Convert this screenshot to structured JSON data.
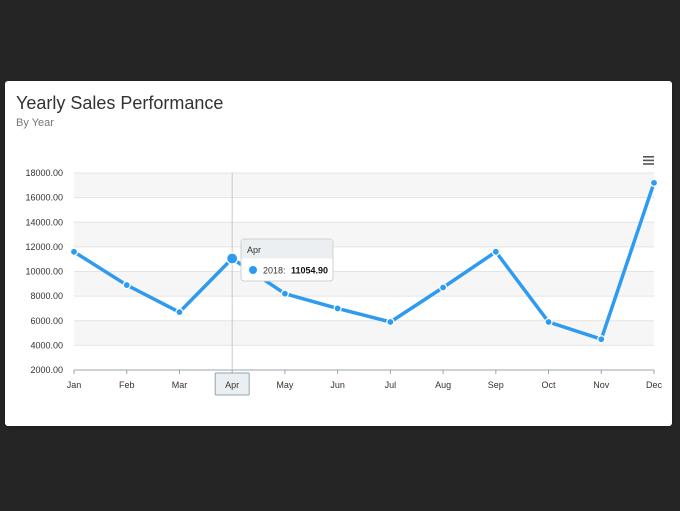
{
  "title": "Yearly Sales Performance",
  "subtitle": "By Year",
  "icons": {
    "menu": "menu-icon"
  },
  "colors": {
    "series": "#2e9bf0",
    "band": "#f6f6f6",
    "grid": "#e4e4e4"
  },
  "chart_data": {
    "type": "line",
    "x": [
      "Jan",
      "Feb",
      "Mar",
      "Apr",
      "May",
      "Jun",
      "Jul",
      "Aug",
      "Sep",
      "Oct",
      "Nov",
      "Dec"
    ],
    "series": [
      {
        "name": "2018",
        "values": [
          11600,
          8900,
          6700,
          11054.9,
          8200,
          7000,
          5900,
          8700,
          11600,
          5900,
          4500,
          17200
        ]
      }
    ],
    "y_ticks": [
      "2000.00",
      "4000.00",
      "6000.00",
      "8000.00",
      "10000.00",
      "12000.00",
      "14000.00",
      "16000.00",
      "18000.00"
    ],
    "ylim": [
      2000,
      18000
    ],
    "grid": true,
    "legend": "none",
    "highlight": {
      "x_label": "Apr",
      "index": 3
    },
    "tooltip": {
      "title": "Apr",
      "series": "2018:",
      "value": "11054.90"
    }
  }
}
